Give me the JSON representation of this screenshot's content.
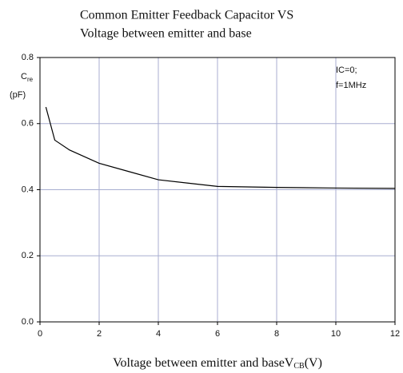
{
  "chart_data": {
    "type": "line",
    "title": [
      "Common Emitter Feedback Capacitor VS",
      "Voltage between emitter and base"
    ],
    "x_label": {
      "text": "Voltage between emitter and base",
      "symbol": "V",
      "subscript": "CB",
      "unit": "(V)"
    },
    "y_label": {
      "symbol": "C",
      "subscript": "re",
      "unit": "(pF)"
    },
    "annotation": [
      "IC=0;",
      "f=1MHz"
    ],
    "x": [
      0.2,
      0.5,
      1,
      2,
      3,
      4,
      5,
      6,
      8,
      10,
      12
    ],
    "series": [
      {
        "name": "Cre",
        "color": "#000000",
        "values": [
          0.65,
          0.55,
          0.52,
          0.48,
          0.455,
          0.43,
          0.42,
          0.41,
          0.407,
          0.405,
          0.404
        ]
      }
    ],
    "xlim": [
      0,
      12
    ],
    "xticks": [
      0,
      2,
      4,
      6,
      8,
      10,
      12
    ],
    "ylim": [
      0,
      0.8
    ],
    "yticks": [
      {
        "value": 0,
        "label": "0.0"
      },
      0.2,
      0.4,
      0.6,
      0.8
    ],
    "grid": true
  }
}
